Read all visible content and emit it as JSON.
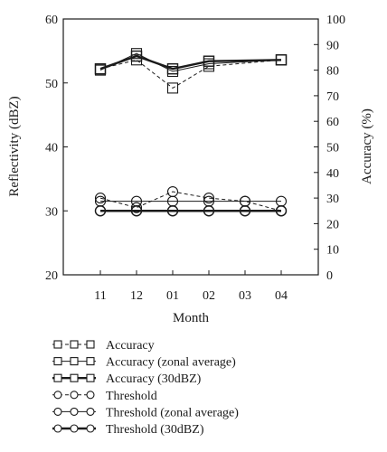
{
  "chart_data": {
    "type": "line",
    "xlabel": "Month",
    "ylabel_left": "Reflectivity (dBZ)",
    "ylabel_right": "Accuracy (%)",
    "categories": [
      "11",
      "12",
      "01",
      "02",
      "03",
      "04"
    ],
    "ylim_left": [
      20,
      60
    ],
    "yticks_left": [
      20,
      30,
      40,
      50,
      60
    ],
    "ylim_right": [
      0,
      100
    ],
    "yticks_right": [
      0,
      10,
      20,
      30,
      40,
      50,
      60,
      70,
      80,
      90,
      100
    ],
    "grid": false,
    "legend_position": "below",
    "series": [
      {
        "name": "Accuracy",
        "axis": "right",
        "marker": "square",
        "dash": "dashed",
        "weight": "thin",
        "x": [
          "11",
          "12",
          "01",
          "02",
          "03",
          "04"
        ],
        "values": [
          80.5,
          84.0,
          73.0,
          81.5,
          null,
          84.0
        ]
      },
      {
        "name": "Accuracy (zonal average)",
        "axis": "right",
        "marker": "square",
        "dash": "solid",
        "weight": "thin",
        "x": [
          "11",
          "12",
          "01",
          "02",
          "03",
          "04"
        ],
        "values": [
          80.0,
          86.5,
          79.5,
          82.5,
          null,
          84.0
        ]
      },
      {
        "name": "Accuracy (30dBZ)",
        "axis": "right",
        "marker": "square",
        "dash": "solid",
        "weight": "thick",
        "x": [
          "11",
          "12",
          "01",
          "02",
          "03",
          "04"
        ],
        "values": [
          80.5,
          85.5,
          80.5,
          83.5,
          null,
          84.0
        ]
      },
      {
        "name": "Threshold",
        "axis": "left",
        "marker": "circle",
        "dash": "dashed",
        "weight": "thin",
        "x": [
          "11",
          "12",
          "01",
          "02",
          "03",
          "04"
        ],
        "values": [
          32.0,
          30.5,
          33.0,
          32.0,
          31.5,
          30.0
        ]
      },
      {
        "name": "Threshold (zonal average)",
        "axis": "left",
        "marker": "circle",
        "dash": "solid",
        "weight": "thin",
        "x": [
          "11",
          "12",
          "01",
          "02",
          "03",
          "04"
        ],
        "values": [
          31.5,
          31.5,
          31.5,
          31.5,
          31.5,
          31.5
        ]
      },
      {
        "name": "Threshold (30dBZ)",
        "axis": "left",
        "marker": "circle",
        "dash": "solid",
        "weight": "thick",
        "x": [
          "11",
          "12",
          "01",
          "02",
          "03",
          "04"
        ],
        "values": [
          30.0,
          30.0,
          30.0,
          30.0,
          30.0,
          30.0
        ]
      }
    ]
  }
}
